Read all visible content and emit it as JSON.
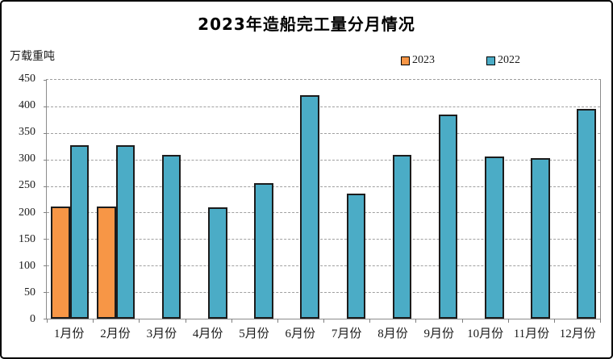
{
  "title": "2023年造船完工量分月情况",
  "unit_label": "万载重吨",
  "colors": {
    "series_2023": "#F79646",
    "series_2022": "#4BACC6",
    "bar_border": "#1C1C1C",
    "gridline": "#A0A0A0",
    "axis": "#808080",
    "text": "#1A1A1A",
    "frame_border": "#000000"
  },
  "legend": {
    "items": [
      {
        "label": "2023",
        "swatch": "orange-square-icon"
      },
      {
        "label": "2022",
        "swatch": "teal-square-icon"
      }
    ],
    "position": "top"
  },
  "chart_data": {
    "type": "bar",
    "title": "2023年造船完工量分月情况",
    "ylabel": "万载重吨",
    "xlabel": "",
    "categories": [
      "1月份",
      "2月份",
      "3月份",
      "4月份",
      "5月份",
      "6月份",
      "7月份",
      "8月份",
      "9月份",
      "10月份",
      "11月份",
      "12月份"
    ],
    "series": [
      {
        "name": "2023",
        "color": "#F79646",
        "values": [
          211,
          211,
          null,
          null,
          null,
          null,
          null,
          null,
          null,
          null,
          null,
          null
        ]
      },
      {
        "name": "2022",
        "color": "#4BACC6",
        "values": [
          327,
          327,
          308,
          210,
          256,
          421,
          235,
          308,
          384,
          306,
          302,
          396
        ]
      }
    ],
    "ylim": [
      0,
      450
    ],
    "ytick_step": 50,
    "grid": true,
    "gridline_style": "dashed",
    "legend_position": "top-right"
  }
}
